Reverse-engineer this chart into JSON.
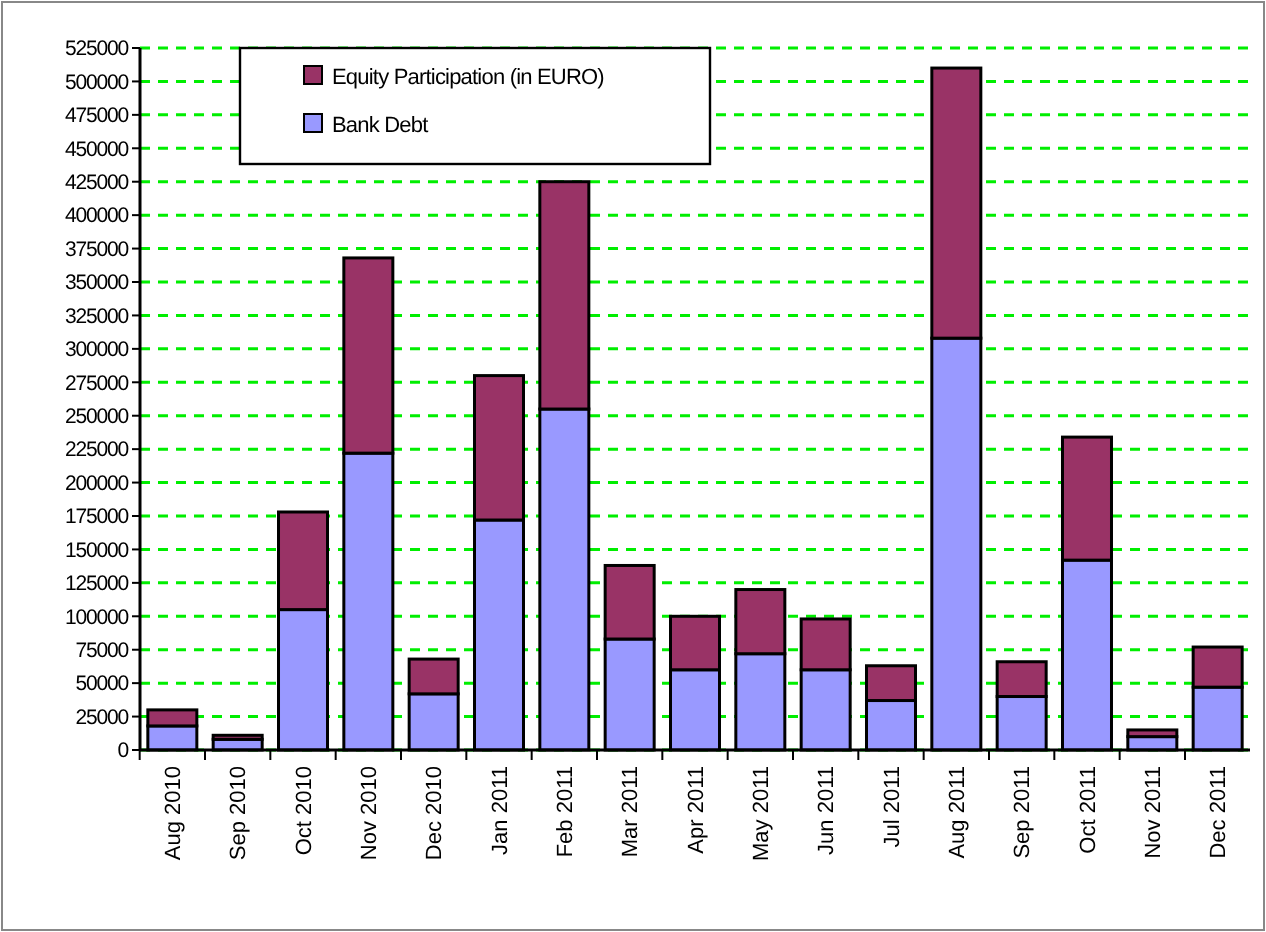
{
  "chart_data": {
    "type": "bar",
    "stacked": true,
    "categories": [
      "Aug 2010",
      "Sep 2010",
      "Oct 2010",
      "Nov 2010",
      "Dec 2010",
      "Jan 2011",
      "Feb 2011",
      "Mar 2011",
      "Apr 2011",
      "May 2011",
      "Jun 2011",
      "Jul 2011",
      "Aug 2011",
      "Sep 2011",
      "Oct 2011",
      "Nov 2011",
      "Dec 2011"
    ],
    "series": [
      {
        "name": "Bank Debt",
        "color": "#9999ff",
        "values": [
          18000,
          8000,
          105000,
          222000,
          42000,
          172000,
          255000,
          83000,
          60000,
          72000,
          60000,
          37000,
          308000,
          40000,
          142000,
          10000,
          47000
        ]
      },
      {
        "name": "Equity Participation (in EURO)",
        "color": "#993366",
        "values": [
          12000,
          3000,
          73000,
          146000,
          26000,
          108000,
          170000,
          55000,
          40000,
          48000,
          38000,
          26000,
          202000,
          26000,
          92000,
          5000,
          30000
        ]
      }
    ],
    "ylim": [
      0,
      525000
    ],
    "yticks": [
      0,
      25000,
      50000,
      75000,
      100000,
      125000,
      150000,
      175000,
      200000,
      225000,
      250000,
      275000,
      300000,
      325000,
      350000,
      375000,
      400000,
      425000,
      450000,
      475000,
      500000,
      525000
    ],
    "grid": "y",
    "legend": "top"
  }
}
